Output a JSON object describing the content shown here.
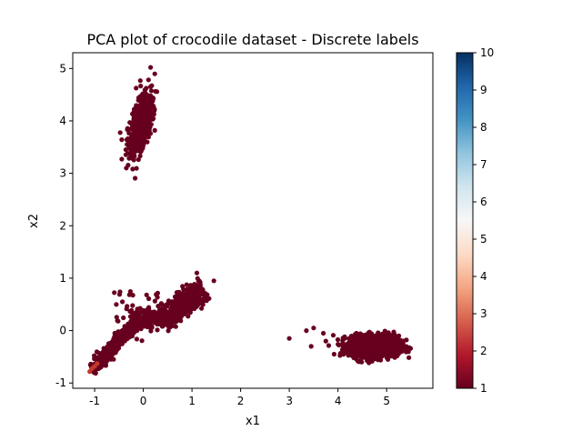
{
  "chart_data": {
    "type": "scatter",
    "title": "PCA plot of crocodile dataset - Discrete labels",
    "xlabel": "x1",
    "ylabel": "x2",
    "xlim": [
      -1.45,
      5.95
    ],
    "ylim": [
      -1.1,
      5.3
    ],
    "xticks": [
      -1,
      0,
      1,
      2,
      3,
      4,
      5
    ],
    "yticks": [
      -1,
      0,
      1,
      2,
      3,
      4,
      5
    ],
    "grid": false,
    "colorbar": {
      "min": 1,
      "max": 10,
      "ticks": [
        1,
        2,
        3,
        4,
        5,
        6,
        7,
        8,
        9,
        10
      ],
      "colormap": "RdBu",
      "stops": [
        "#67001f",
        "#b2182b",
        "#d6604d",
        "#f4a582",
        "#fddbc7",
        "#f7f7f7",
        "#d1e5f0",
        "#92c5de",
        "#4393c3",
        "#2166ac",
        "#053061"
      ]
    },
    "point_color_main": "#67001f",
    "point_color_label2": "#c0392b",
    "clusters": [
      {
        "name": "upper",
        "center": [
          -0.05,
          3.95
        ],
        "spread": [
          0.12,
          0.3
        ],
        "label": 1
      },
      {
        "name": "right",
        "center": [
          4.75,
          -0.3
        ],
        "spread": [
          0.25,
          0.1
        ],
        "label": 1
      },
      {
        "name": "diagonal",
        "start": [
          -1.05,
          -0.75
        ],
        "end": [
          1.1,
          0.6
        ],
        "label": 1
      }
    ],
    "outliers": [
      {
        "x": 3.0,
        "y": -0.15
      },
      {
        "x": 3.35,
        "y": 0.0
      },
      {
        "x": 3.5,
        "y": 0.05
      },
      {
        "x": 3.45,
        "y": -0.3
      },
      {
        "x": 3.75,
        "y": -0.2
      },
      {
        "x": 3.7,
        "y": -0.05
      },
      {
        "x": 0.15,
        "y": 5.02
      },
      {
        "x": -0.35,
        "y": 3.1
      },
      {
        "x": 1.45,
        "y": 0.95
      },
      {
        "x": 1.1,
        "y": 1.1
      }
    ],
    "label2_points": [
      {
        "x": -1.1,
        "y": -0.78
      },
      {
        "x": -1.05,
        "y": -0.72
      },
      {
        "x": -1.0,
        "y": -0.68
      },
      {
        "x": -0.95,
        "y": -0.63
      }
    ]
  }
}
